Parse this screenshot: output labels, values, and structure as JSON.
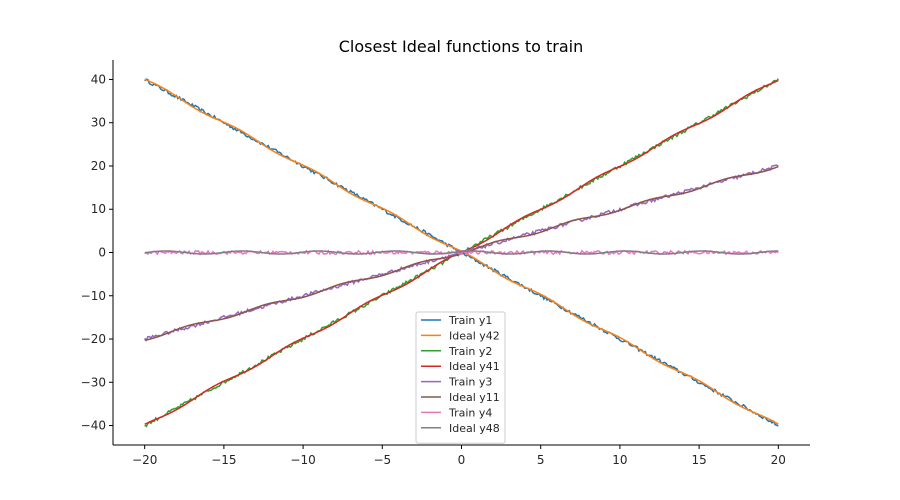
{
  "chart_data": {
    "type": "line",
    "title": "Closest Ideal functions to train",
    "xlabel": "",
    "ylabel": "",
    "xlim": [
      -22,
      22
    ],
    "ylim": [
      -44.5,
      44.5
    ],
    "xticks": [
      -20,
      -15,
      -10,
      -5,
      0,
      5,
      10,
      15,
      20
    ],
    "yticks": [
      -40,
      -30,
      -20,
      -10,
      0,
      10,
      20,
      30,
      40
    ],
    "grid": false,
    "legend_position": "lower-center",
    "series": [
      {
        "name": "Train y1",
        "color": "#1f77b4",
        "function": "-2x",
        "x": [
          -20,
          0,
          20
        ],
        "y": [
          40,
          0,
          -40
        ]
      },
      {
        "name": "Ideal y42",
        "color": "#ff7f0e",
        "function": "-2x",
        "x": [
          -20,
          0,
          20
        ],
        "y": [
          40,
          0,
          -40
        ]
      },
      {
        "name": "Train y2",
        "color": "#2ca02c",
        "function": "2x",
        "x": [
          -20,
          0,
          20
        ],
        "y": [
          -40,
          0,
          40
        ]
      },
      {
        "name": "Ideal y41",
        "color": "#d62728",
        "function": "2x",
        "x": [
          -20,
          0,
          20
        ],
        "y": [
          -40,
          0,
          40
        ]
      },
      {
        "name": "Train y3",
        "color": "#9467bd",
        "function": "x",
        "x": [
          -20,
          0,
          20
        ],
        "y": [
          -20,
          0,
          20
        ]
      },
      {
        "name": "Ideal y11",
        "color": "#8c564b",
        "function": "x",
        "x": [
          -20,
          0,
          20
        ],
        "y": [
          -20,
          0,
          20
        ]
      },
      {
        "name": "Train y4",
        "color": "#e377c2",
        "function": "0",
        "x": [
          -20,
          0,
          20
        ],
        "y": [
          0,
          0,
          0
        ]
      },
      {
        "name": "Ideal y48",
        "color": "#7f7f7f",
        "function": "0",
        "x": [
          -20,
          0,
          20
        ],
        "y": [
          0,
          0,
          0
        ]
      }
    ]
  }
}
